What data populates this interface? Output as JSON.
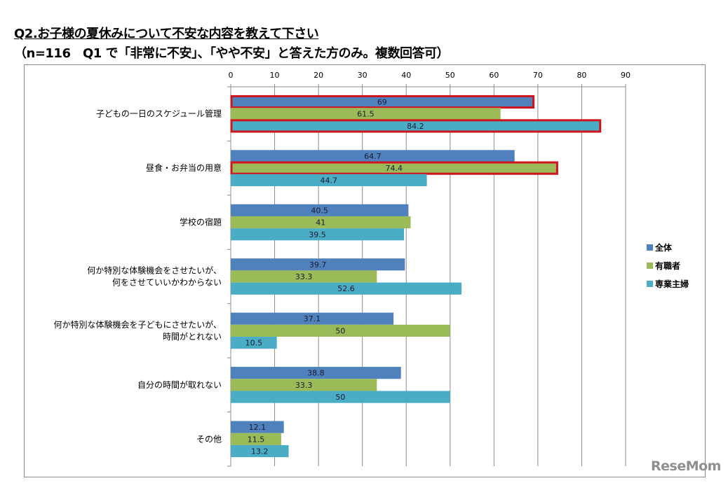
{
  "page": {
    "title": "Q2.お子様の夏休みについて不安な内容を教えて下さい",
    "subtitle": "（n=116　Q1 で「非常に不安」、「やや不安」と答えた方のみ。複数回答可）",
    "watermark": "ReseMom"
  },
  "chart_data": {
    "type": "bar",
    "orientation": "horizontal",
    "title": "Q2.お子様の夏休みについて不安な内容を教えて下さい",
    "subtitle": "（n=116　Q1 で「非常に不安」、「やや不安」と答えた方のみ。複数回答可）",
    "xlabel": "",
    "ylabel": "",
    "xlim": [
      0,
      90
    ],
    "xticks": [
      0,
      10,
      20,
      30,
      40,
      50,
      60,
      70,
      80,
      90
    ],
    "x_axis_position": "top",
    "grid": true,
    "legend_position": "right",
    "categories": [
      [
        "子どもの一日のスケジュール管理"
      ],
      [
        "昼食・お弁当の用意"
      ],
      [
        "学校の宿題"
      ],
      [
        "何か特別な体験機会をさせたいが、",
        "何をさせていいかわからない"
      ],
      [
        "何か特別な体験機会を子どもにさせたいが、",
        "時間がとれない"
      ],
      [
        "自分の時間が取れない"
      ],
      [
        "その他"
      ]
    ],
    "series": [
      {
        "name": "全体",
        "color": "#4f81bd",
        "values": [
          69,
          64.7,
          40.5,
          39.7,
          37.1,
          38.8,
          12.1
        ]
      },
      {
        "name": "有職者",
        "color": "#9bbb59",
        "values": [
          61.5,
          74.4,
          41,
          33.3,
          50,
          33.3,
          11.5
        ]
      },
      {
        "name": "専業主婦",
        "color": "#4bacc6",
        "values": [
          84.2,
          44.7,
          39.5,
          52.6,
          10.5,
          50,
          13.2
        ]
      }
    ],
    "highlights": [
      {
        "category_index": 0,
        "series_index": 0,
        "color": "#d0141c"
      },
      {
        "category_index": 0,
        "series_index": 2,
        "color": "#d0141c"
      },
      {
        "category_index": 1,
        "series_index": 1,
        "color": "#d0141c"
      }
    ],
    "data_labels": true
  }
}
